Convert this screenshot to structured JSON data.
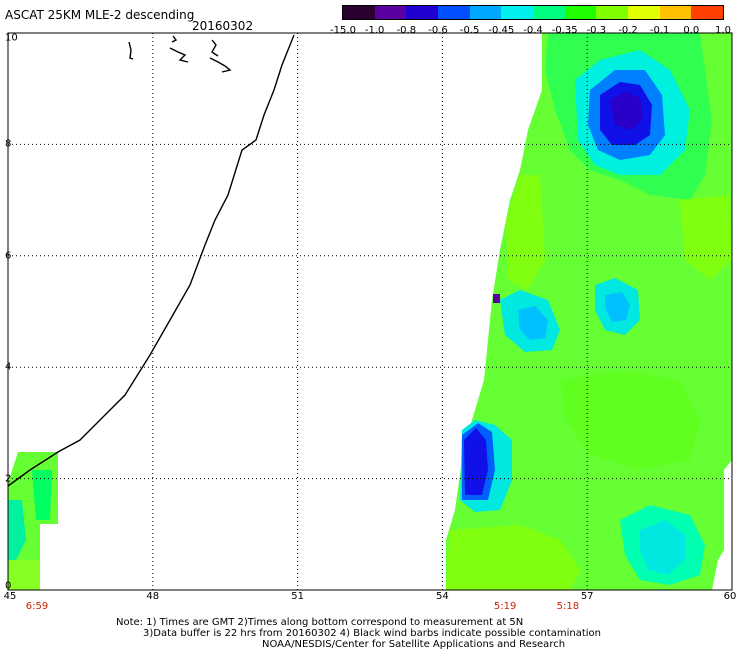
{
  "title": "ASCAT 25KM MLE-2 descending",
  "date": "20160302",
  "colorbar": {
    "labels": [
      "-15.0",
      "-1.0",
      "-0.8",
      "-0.6",
      "-0.5",
      "-0.45",
      "-0.4",
      "-0.35",
      "-0.3",
      "-0.2",
      "-0.1",
      "0.0",
      "1.0"
    ],
    "colors": [
      "#2a0030",
      "#5a00a0",
      "#2000d0",
      "#0050ff",
      "#00a8ff",
      "#00f0f0",
      "#00ff80",
      "#20ff00",
      "#80ff00",
      "#e0ff00",
      "#ffc000",
      "#ff4000"
    ]
  },
  "axes": {
    "x_ticks": [
      "45",
      "48",
      "51",
      "54",
      "57",
      "60"
    ],
    "y_ticks": [
      "0",
      "2",
      "4",
      "6",
      "8",
      "10"
    ],
    "time_labels": [
      {
        "text": "6:59",
        "lon": 45.6
      },
      {
        "text": "5:19",
        "lon": 55.3
      },
      {
        "text": "5:18",
        "lon": 56.6
      }
    ]
  },
  "notes": [
    "Note: 1) Times are GMT 2)Times along bottom correspond to measurement at 5N",
    "3)Data buffer is 22 hrs from 20160302 4) Black wind barbs indicate possible contamination",
    "NOAA/NESDIS/Center for Satellite Applications and Research"
  ],
  "colors": {
    "frame": "#000000",
    "grid": "#000000",
    "time_label": "#cc2200"
  }
}
